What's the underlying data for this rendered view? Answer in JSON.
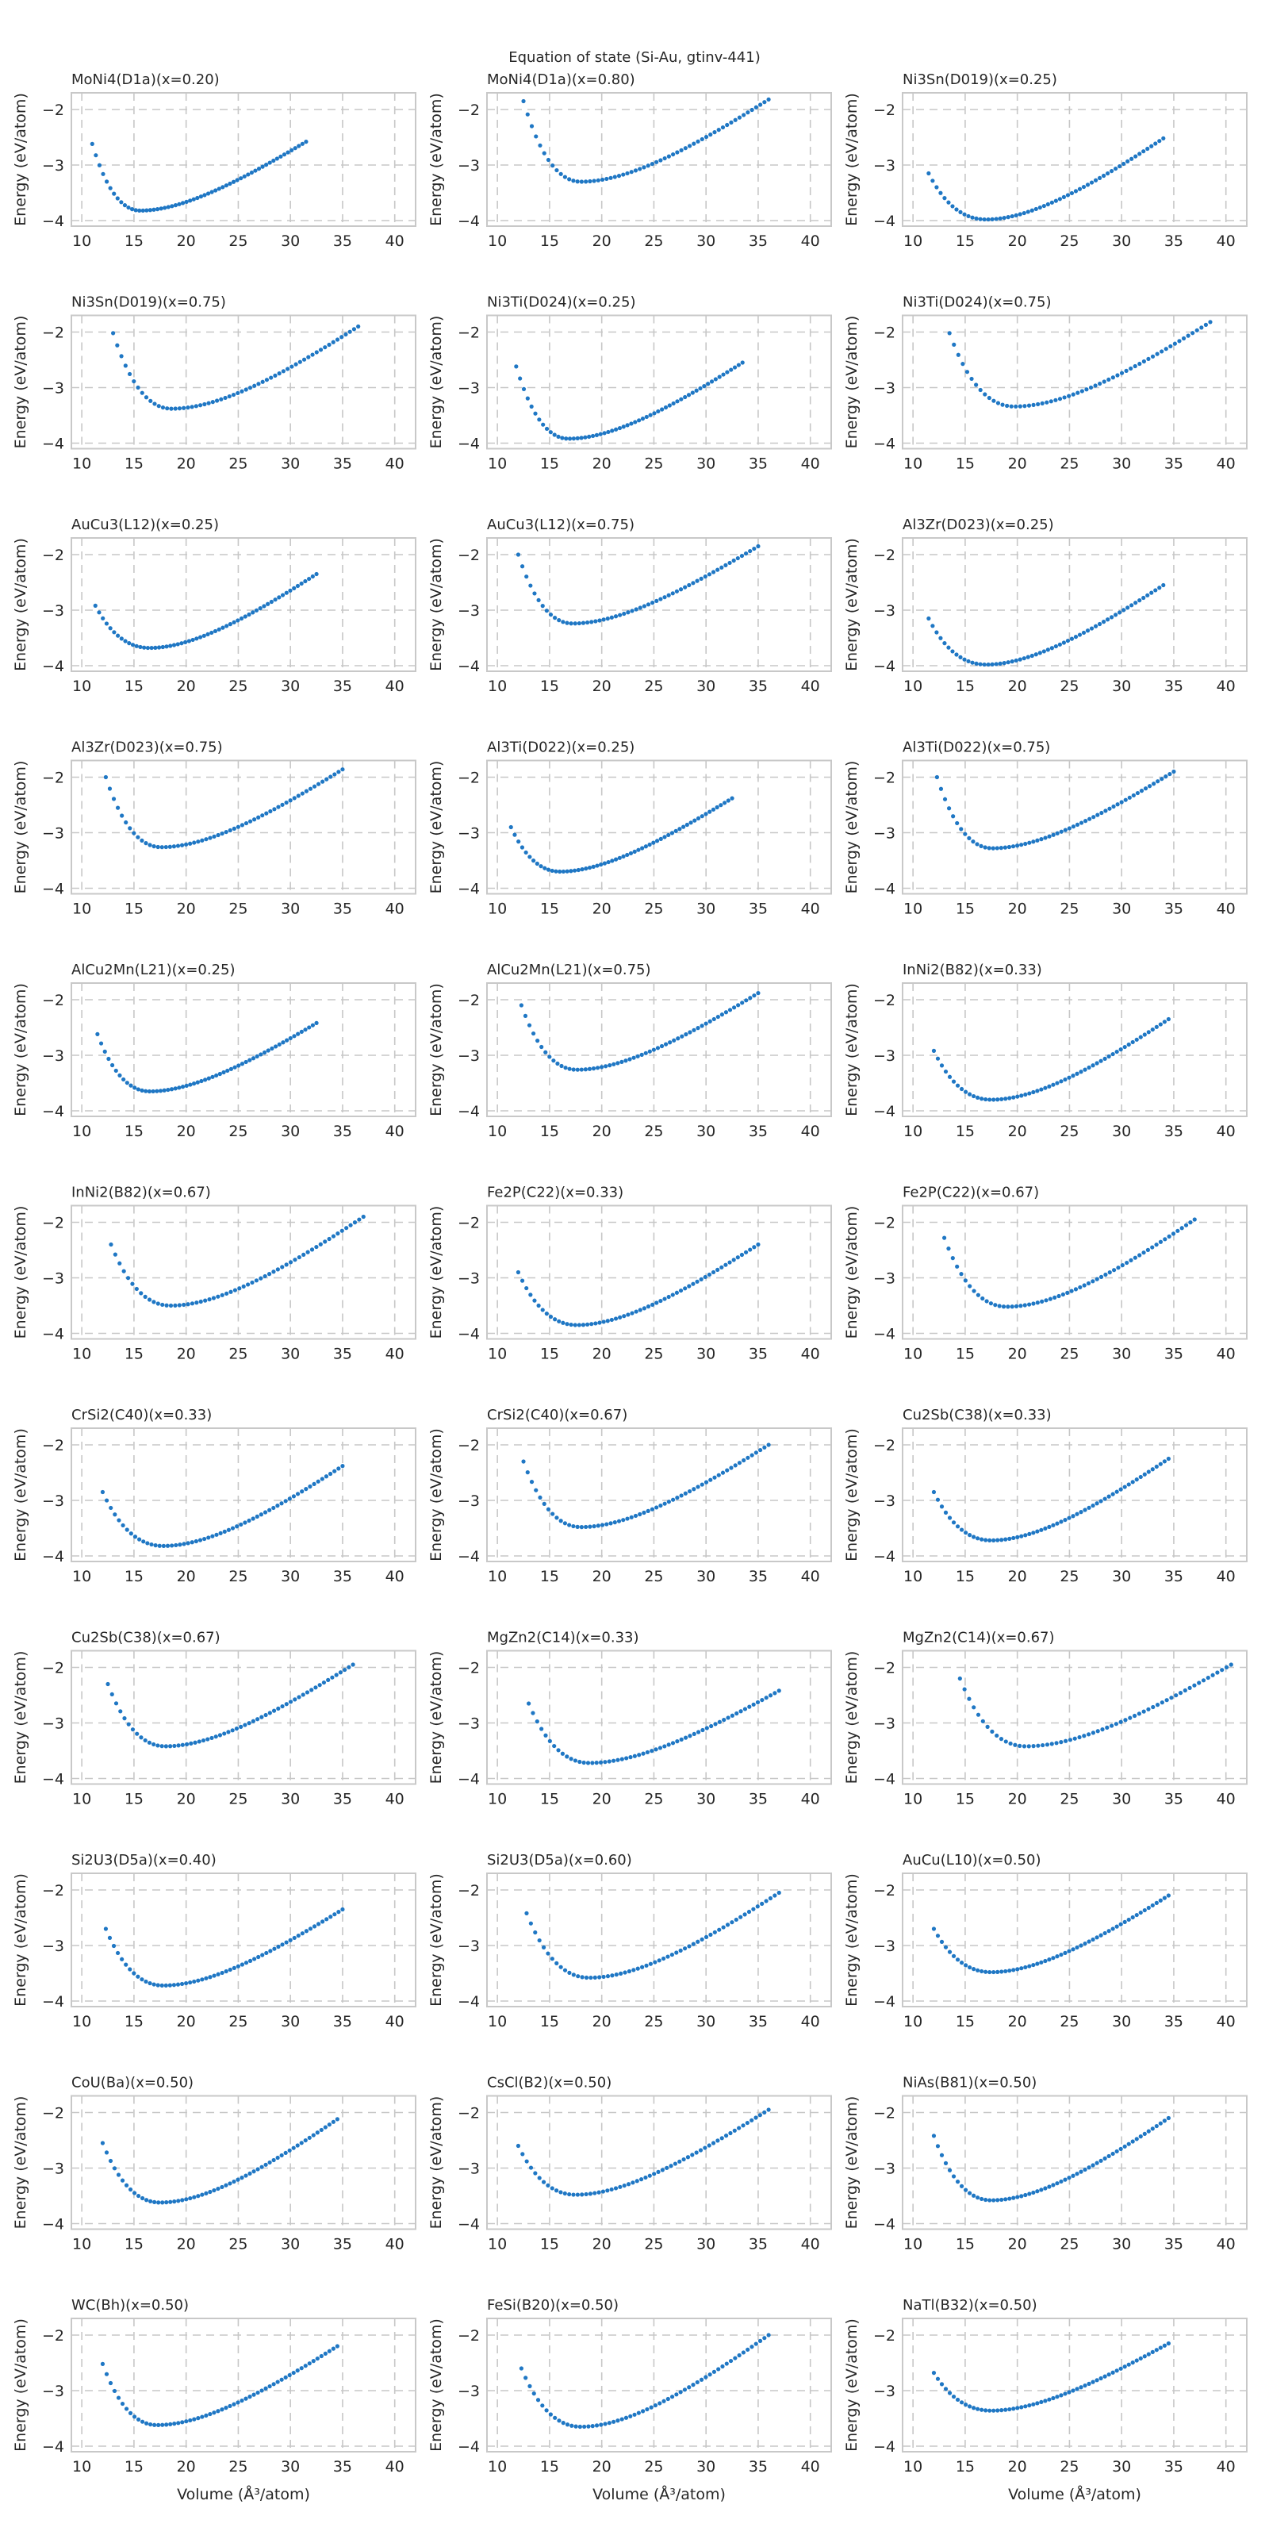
{
  "figure_title": "Equation of state (Si-Au, gtinv-441)",
  "xlabel": "Volume (Å³/atom)",
  "ylabel": "Energy (eV/atom)",
  "colors": {
    "points": "#1f77c4",
    "grid": "#c7c7c7",
    "frame": "#c8c8c8",
    "text": "#262626"
  },
  "chart_data": [
    {
      "type": "scatter",
      "title": "MoNi4(D1a)(x=0.20)",
      "xlim": [
        9,
        42
      ],
      "ylim": [
        -4.1,
        -1.7
      ],
      "xticks": [
        10,
        15,
        20,
        25,
        30,
        35,
        40
      ],
      "yticks": [
        -4,
        -3,
        -2
      ],
      "grid": true,
      "curve": {
        "v_min": 11.0,
        "v_max": 31.5,
        "v0": 15.6,
        "e0": -3.82,
        "e_first": -2.62,
        "e_last": -2.58,
        "n_points": 60
      }
    },
    {
      "type": "scatter",
      "title": "MoNi4(D1a)(x=0.80)",
      "xlim": [
        9,
        42
      ],
      "ylim": [
        -4.1,
        -1.7
      ],
      "xticks": [
        10,
        15,
        20,
        25,
        30,
        35,
        40
      ],
      "yticks": [
        -4,
        -3,
        -2
      ],
      "grid": true,
      "curve": {
        "v_min": 12.5,
        "v_max": 36.0,
        "v0": 18.0,
        "e0": -3.3,
        "e_first": -1.85,
        "e_last": -1.82,
        "n_points": 60
      }
    },
    {
      "type": "scatter",
      "title": "Ni3Sn(D019)(x=0.25)",
      "xlim": [
        9,
        42
      ],
      "ylim": [
        -4.1,
        -1.7
      ],
      "xticks": [
        10,
        15,
        20,
        25,
        30,
        35,
        40
      ],
      "yticks": [
        -4,
        -3,
        -2
      ],
      "grid": true,
      "curve": {
        "v_min": 11.5,
        "v_max": 34.0,
        "v0": 17.0,
        "e0": -3.98,
        "e_first": -3.15,
        "e_last": -2.52,
        "n_points": 60
      }
    },
    {
      "type": "scatter",
      "title": "Ni3Sn(D019)(x=0.75)",
      "xlim": [
        9,
        42
      ],
      "ylim": [
        -4.1,
        -1.7
      ],
      "xticks": [
        10,
        15,
        20,
        25,
        30,
        35,
        40
      ],
      "yticks": [
        -4,
        -3,
        -2
      ],
      "grid": true,
      "curve": {
        "v_min": 13.0,
        "v_max": 36.5,
        "v0": 18.6,
        "e0": -3.38,
        "e_first": -2.02,
        "e_last": -1.9,
        "n_points": 60
      }
    },
    {
      "type": "scatter",
      "title": "Ni3Ti(D024)(x=0.25)",
      "xlim": [
        9,
        42
      ],
      "ylim": [
        -4.1,
        -1.7
      ],
      "xticks": [
        10,
        15,
        20,
        25,
        30,
        35,
        40
      ],
      "yticks": [
        -4,
        -3,
        -2
      ],
      "grid": true,
      "curve": {
        "v_min": 11.8,
        "v_max": 33.5,
        "v0": 16.8,
        "e0": -3.92,
        "e_first": -2.62,
        "e_last": -2.55,
        "n_points": 60
      }
    },
    {
      "type": "scatter",
      "title": "Ni3Ti(D024)(x=0.75)",
      "xlim": [
        9,
        42
      ],
      "ylim": [
        -4.1,
        -1.7
      ],
      "xticks": [
        10,
        15,
        20,
        25,
        30,
        35,
        40
      ],
      "yticks": [
        -4,
        -3,
        -2
      ],
      "grid": true,
      "curve": {
        "v_min": 13.5,
        "v_max": 38.5,
        "v0": 19.7,
        "e0": -3.34,
        "e_first": -2.02,
        "e_last": -1.82,
        "n_points": 60
      }
    },
    {
      "type": "scatter",
      "title": "AuCu3(L12)(x=0.25)",
      "xlim": [
        9,
        42
      ],
      "ylim": [
        -4.1,
        -1.7
      ],
      "xticks": [
        10,
        15,
        20,
        25,
        30,
        35,
        40
      ],
      "yticks": [
        -4,
        -3,
        -2
      ],
      "grid": true,
      "curve": {
        "v_min": 11.3,
        "v_max": 32.5,
        "v0": 16.5,
        "e0": -3.68,
        "e_first": -2.92,
        "e_last": -2.35,
        "n_points": 60
      }
    },
    {
      "type": "scatter",
      "title": "AuCu3(L12)(x=0.75)",
      "xlim": [
        9,
        42
      ],
      "ylim": [
        -4.1,
        -1.7
      ],
      "xticks": [
        10,
        15,
        20,
        25,
        30,
        35,
        40
      ],
      "yticks": [
        -4,
        -3,
        -2
      ],
      "grid": true,
      "curve": {
        "v_min": 12.0,
        "v_max": 35.0,
        "v0": 17.2,
        "e0": -3.24,
        "e_first": -2.0,
        "e_last": -1.85,
        "n_points": 60
      }
    },
    {
      "type": "scatter",
      "title": "Al3Zr(D023)(x=0.25)",
      "xlim": [
        9,
        42
      ],
      "ylim": [
        -4.1,
        -1.7
      ],
      "xticks": [
        10,
        15,
        20,
        25,
        30,
        35,
        40
      ],
      "yticks": [
        -4,
        -3,
        -2
      ],
      "grid": true,
      "curve": {
        "v_min": 11.5,
        "v_max": 34.0,
        "v0": 17.0,
        "e0": -3.98,
        "e_first": -3.15,
        "e_last": -2.55,
        "n_points": 60
      }
    },
    {
      "type": "scatter",
      "title": "Al3Zr(D023)(x=0.75)",
      "xlim": [
        9,
        42
      ],
      "ylim": [
        -4.1,
        -1.7
      ],
      "xticks": [
        10,
        15,
        20,
        25,
        30,
        35,
        40
      ],
      "yticks": [
        -4,
        -3,
        -2
      ],
      "grid": true,
      "curve": {
        "v_min": 12.3,
        "v_max": 35.0,
        "v0": 17.6,
        "e0": -3.26,
        "e_first": -2.0,
        "e_last": -1.86,
        "n_points": 60
      }
    },
    {
      "type": "scatter",
      "title": "Al3Ti(D022)(x=0.25)",
      "xlim": [
        9,
        42
      ],
      "ylim": [
        -4.1,
        -1.7
      ],
      "xticks": [
        10,
        15,
        20,
        25,
        30,
        35,
        40
      ],
      "yticks": [
        -4,
        -3,
        -2
      ],
      "grid": true,
      "curve": {
        "v_min": 11.3,
        "v_max": 32.5,
        "v0": 16.0,
        "e0": -3.7,
        "e_first": -2.9,
        "e_last": -2.38,
        "n_points": 60
      }
    },
    {
      "type": "scatter",
      "title": "Al3Ti(D022)(x=0.75)",
      "xlim": [
        9,
        42
      ],
      "ylim": [
        -4.1,
        -1.7
      ],
      "xticks": [
        10,
        15,
        20,
        25,
        30,
        35,
        40
      ],
      "yticks": [
        -4,
        -3,
        -2
      ],
      "grid": true,
      "curve": {
        "v_min": 12.3,
        "v_max": 35.0,
        "v0": 17.6,
        "e0": -3.28,
        "e_first": -2.0,
        "e_last": -1.9,
        "n_points": 60
      }
    },
    {
      "type": "scatter",
      "title": "AlCu2Mn(L21)(x=0.25)",
      "xlim": [
        9,
        42
      ],
      "ylim": [
        -4.1,
        -1.7
      ],
      "xticks": [
        10,
        15,
        20,
        25,
        30,
        35,
        40
      ],
      "yticks": [
        -4,
        -3,
        -2
      ],
      "grid": true,
      "curve": {
        "v_min": 11.5,
        "v_max": 32.5,
        "v0": 16.5,
        "e0": -3.65,
        "e_first": -2.62,
        "e_last": -2.42,
        "n_points": 60
      }
    },
    {
      "type": "scatter",
      "title": "AlCu2Mn(L21)(x=0.75)",
      "xlim": [
        9,
        42
      ],
      "ylim": [
        -4.1,
        -1.7
      ],
      "xticks": [
        10,
        15,
        20,
        25,
        30,
        35,
        40
      ],
      "yticks": [
        -4,
        -3,
        -2
      ],
      "grid": true,
      "curve": {
        "v_min": 12.3,
        "v_max": 35.0,
        "v0": 17.6,
        "e0": -3.26,
        "e_first": -2.1,
        "e_last": -1.88,
        "n_points": 60
      }
    },
    {
      "type": "scatter",
      "title": "InNi2(B82)(x=0.33)",
      "xlim": [
        9,
        42
      ],
      "ylim": [
        -4.1,
        -1.7
      ],
      "xticks": [
        10,
        15,
        20,
        25,
        30,
        35,
        40
      ],
      "yticks": [
        -4,
        -3,
        -2
      ],
      "grid": true,
      "curve": {
        "v_min": 12.0,
        "v_max": 34.5,
        "v0": 17.5,
        "e0": -3.8,
        "e_first": -2.92,
        "e_last": -2.35,
        "n_points": 60
      }
    },
    {
      "type": "scatter",
      "title": "InNi2(B82)(x=0.67)",
      "xlim": [
        9,
        42
      ],
      "ylim": [
        -4.1,
        -1.7
      ],
      "xticks": [
        10,
        15,
        20,
        25,
        30,
        35,
        40
      ],
      "yticks": [
        -4,
        -3,
        -2
      ],
      "grid": true,
      "curve": {
        "v_min": 12.8,
        "v_max": 37.0,
        "v0": 18.5,
        "e0": -3.5,
        "e_first": -2.4,
        "e_last": -1.9,
        "n_points": 60
      }
    },
    {
      "type": "scatter",
      "title": "Fe2P(C22)(x=0.33)",
      "xlim": [
        9,
        42
      ],
      "ylim": [
        -4.1,
        -1.7
      ],
      "xticks": [
        10,
        15,
        20,
        25,
        30,
        35,
        40
      ],
      "yticks": [
        -4,
        -3,
        -2
      ],
      "grid": true,
      "curve": {
        "v_min": 12.0,
        "v_max": 35.0,
        "v0": 17.6,
        "e0": -3.85,
        "e_first": -2.9,
        "e_last": -2.4,
        "n_points": 60
      }
    },
    {
      "type": "scatter",
      "title": "Fe2P(C22)(x=0.67)",
      "xlim": [
        9,
        42
      ],
      "ylim": [
        -4.1,
        -1.7
      ],
      "xticks": [
        10,
        15,
        20,
        25,
        30,
        35,
        40
      ],
      "yticks": [
        -4,
        -3,
        -2
      ],
      "grid": true,
      "curve": {
        "v_min": 13.0,
        "v_max": 37.0,
        "v0": 19.0,
        "e0": -3.52,
        "e_first": -2.28,
        "e_last": -1.95,
        "n_points": 60
      }
    },
    {
      "type": "scatter",
      "title": "CrSi2(C40)(x=0.33)",
      "xlim": [
        9,
        42
      ],
      "ylim": [
        -4.1,
        -1.7
      ],
      "xticks": [
        10,
        15,
        20,
        25,
        30,
        35,
        40
      ],
      "yticks": [
        -4,
        -3,
        -2
      ],
      "grid": true,
      "curve": {
        "v_min": 12.0,
        "v_max": 35.0,
        "v0": 17.8,
        "e0": -3.82,
        "e_first": -2.85,
        "e_last": -2.38,
        "n_points": 60
      }
    },
    {
      "type": "scatter",
      "title": "CrSi2(C40)(x=0.67)",
      "xlim": [
        9,
        42
      ],
      "ylim": [
        -4.1,
        -1.7
      ],
      "xticks": [
        10,
        15,
        20,
        25,
        30,
        35,
        40
      ],
      "yticks": [
        -4,
        -3,
        -2
      ],
      "grid": true,
      "curve": {
        "v_min": 12.5,
        "v_max": 36.0,
        "v0": 18.0,
        "e0": -3.48,
        "e_first": -2.3,
        "e_last": -2.0,
        "n_points": 60
      }
    },
    {
      "type": "scatter",
      "title": "Cu2Sb(C38)(x=0.33)",
      "xlim": [
        9,
        42
      ],
      "ylim": [
        -4.1,
        -1.7
      ],
      "xticks": [
        10,
        15,
        20,
        25,
        30,
        35,
        40
      ],
      "yticks": [
        -4,
        -3,
        -2
      ],
      "grid": true,
      "curve": {
        "v_min": 12.0,
        "v_max": 34.5,
        "v0": 17.5,
        "e0": -3.72,
        "e_first": -2.85,
        "e_last": -2.25,
        "n_points": 60
      }
    },
    {
      "type": "scatter",
      "title": "Cu2Sb(C38)(x=0.67)",
      "xlim": [
        9,
        42
      ],
      "ylim": [
        -4.1,
        -1.7
      ],
      "xticks": [
        10,
        15,
        20,
        25,
        30,
        35,
        40
      ],
      "yticks": [
        -4,
        -3,
        -2
      ],
      "grid": true,
      "curve": {
        "v_min": 12.5,
        "v_max": 36.0,
        "v0": 18.0,
        "e0": -3.42,
        "e_first": -2.3,
        "e_last": -1.95,
        "n_points": 60
      }
    },
    {
      "type": "scatter",
      "title": "MgZn2(C14)(x=0.33)",
      "xlim": [
        9,
        42
      ],
      "ylim": [
        -4.1,
        -1.7
      ],
      "xticks": [
        10,
        15,
        20,
        25,
        30,
        35,
        40
      ],
      "yticks": [
        -4,
        -3,
        -2
      ],
      "grid": true,
      "curve": {
        "v_min": 13.0,
        "v_max": 37.0,
        "v0": 18.8,
        "e0": -3.72,
        "e_first": -2.65,
        "e_last": -2.42,
        "n_points": 60
      }
    },
    {
      "type": "scatter",
      "title": "MgZn2(C14)(x=0.67)",
      "xlim": [
        9,
        42
      ],
      "ylim": [
        -4.1,
        -1.7
      ],
      "xticks": [
        10,
        15,
        20,
        25,
        30,
        35,
        40
      ],
      "yticks": [
        -4,
        -3,
        -2
      ],
      "grid": true,
      "curve": {
        "v_min": 14.5,
        "v_max": 40.5,
        "v0": 20.8,
        "e0": -3.42,
        "e_first": -2.2,
        "e_last": -1.95,
        "n_points": 60
      }
    },
    {
      "type": "scatter",
      "title": "Si2U3(D5a)(x=0.40)",
      "xlim": [
        9,
        42
      ],
      "ylim": [
        -4.1,
        -1.7
      ],
      "xticks": [
        10,
        15,
        20,
        25,
        30,
        35,
        40
      ],
      "yticks": [
        -4,
        -3,
        -2
      ],
      "grid": true,
      "curve": {
        "v_min": 12.3,
        "v_max": 35.0,
        "v0": 17.8,
        "e0": -3.72,
        "e_first": -2.7,
        "e_last": -2.35,
        "n_points": 60
      }
    },
    {
      "type": "scatter",
      "title": "Si2U3(D5a)(x=0.60)",
      "xlim": [
        9,
        42
      ],
      "ylim": [
        -4.1,
        -1.7
      ],
      "xticks": [
        10,
        15,
        20,
        25,
        30,
        35,
        40
      ],
      "yticks": [
        -4,
        -3,
        -2
      ],
      "grid": true,
      "curve": {
        "v_min": 12.8,
        "v_max": 37.0,
        "v0": 18.8,
        "e0": -3.58,
        "e_first": -2.42,
        "e_last": -2.05,
        "n_points": 60
      }
    },
    {
      "type": "scatter",
      "title": "AuCu(L10)(x=0.50)",
      "xlim": [
        9,
        42
      ],
      "ylim": [
        -4.1,
        -1.7
      ],
      "xticks": [
        10,
        15,
        20,
        25,
        30,
        35,
        40
      ],
      "yticks": [
        -4,
        -3,
        -2
      ],
      "grid": true,
      "curve": {
        "v_min": 12.0,
        "v_max": 34.5,
        "v0": 17.5,
        "e0": -3.48,
        "e_first": -2.7,
        "e_last": -2.1,
        "n_points": 60
      }
    },
    {
      "type": "scatter",
      "title": "CoU(Ba)(x=0.50)",
      "xlim": [
        9,
        42
      ],
      "ylim": [
        -4.1,
        -1.7
      ],
      "xticks": [
        10,
        15,
        20,
        25,
        30,
        35,
        40
      ],
      "yticks": [
        -4,
        -3,
        -2
      ],
      "grid": true,
      "curve": {
        "v_min": 12.0,
        "v_max": 34.5,
        "v0": 17.5,
        "e0": -3.62,
        "e_first": -2.55,
        "e_last": -2.12,
        "n_points": 60
      }
    },
    {
      "type": "scatter",
      "title": "CsCl(B2)(x=0.50)",
      "xlim": [
        9,
        42
      ],
      "ylim": [
        -4.1,
        -1.7
      ],
      "xticks": [
        10,
        15,
        20,
        25,
        30,
        35,
        40
      ],
      "yticks": [
        -4,
        -3,
        -2
      ],
      "grid": true,
      "curve": {
        "v_min": 12.0,
        "v_max": 36.0,
        "v0": 17.5,
        "e0": -3.48,
        "e_first": -2.6,
        "e_last": -1.95,
        "n_points": 60
      }
    },
    {
      "type": "scatter",
      "title": "NiAs(B81)(x=0.50)",
      "xlim": [
        9,
        42
      ],
      "ylim": [
        -4.1,
        -1.7
      ],
      "xticks": [
        10,
        15,
        20,
        25,
        30,
        35,
        40
      ],
      "yticks": [
        -4,
        -3,
        -2
      ],
      "grid": true,
      "curve": {
        "v_min": 12.0,
        "v_max": 34.5,
        "v0": 17.5,
        "e0": -3.58,
        "e_first": -2.42,
        "e_last": -2.1,
        "n_points": 60
      }
    },
    {
      "type": "scatter",
      "title": "WC(Bh)(x=0.50)",
      "xlim": [
        9,
        42
      ],
      "ylim": [
        -4.1,
        -1.7
      ],
      "xticks": [
        10,
        15,
        20,
        25,
        30,
        35,
        40
      ],
      "yticks": [
        -4,
        -3,
        -2
      ],
      "grid": true,
      "curve": {
        "v_min": 12.0,
        "v_max": 34.5,
        "v0": 17.2,
        "e0": -3.62,
        "e_first": -2.52,
        "e_last": -2.2,
        "n_points": 60
      }
    },
    {
      "type": "scatter",
      "title": "FeSi(B20)(x=0.50)",
      "xlim": [
        9,
        42
      ],
      "ylim": [
        -4.1,
        -1.7
      ],
      "xticks": [
        10,
        15,
        20,
        25,
        30,
        35,
        40
      ],
      "yticks": [
        -4,
        -3,
        -2
      ],
      "grid": true,
      "curve": {
        "v_min": 12.3,
        "v_max": 36.0,
        "v0": 18.0,
        "e0": -3.65,
        "e_first": -2.6,
        "e_last": -2.0,
        "n_points": 60
      }
    },
    {
      "type": "scatter",
      "title": "NaTl(B32)(x=0.50)",
      "xlim": [
        9,
        42
      ],
      "ylim": [
        -4.1,
        -1.7
      ],
      "xticks": [
        10,
        15,
        20,
        25,
        30,
        35,
        40
      ],
      "yticks": [
        -4,
        -3,
        -2
      ],
      "grid": true,
      "curve": {
        "v_min": 12.0,
        "v_max": 34.5,
        "v0": 17.5,
        "e0": -3.36,
        "e_first": -2.68,
        "e_last": -2.15,
        "n_points": 60
      }
    }
  ]
}
